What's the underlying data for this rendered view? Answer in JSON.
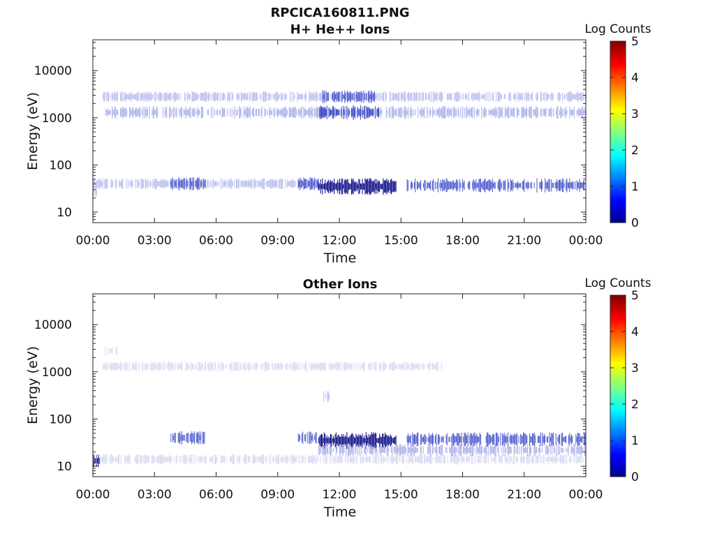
{
  "figure": {
    "title_line1": "RPCICA160811.PNG",
    "title_line2": "H+ He++ Ions"
  },
  "colorbar": {
    "title": "Log Counts",
    "ticks": [
      "0",
      "1",
      "2",
      "3",
      "4",
      "5"
    ],
    "range": [
      0,
      5
    ]
  },
  "colors": {
    "dark": "#000080",
    "mid": "#2030c0",
    "light": "#8890e0",
    "faint": "#b8bde8"
  },
  "chart_data": [
    {
      "type": "heatmap",
      "title": "",
      "xlabel": "Time",
      "ylabel": "Energy (eV)",
      "x_ticks": [
        "00:00",
        "03:00",
        "06:00",
        "09:00",
        "12:00",
        "15:00",
        "18:00",
        "21:00",
        "00:00"
      ],
      "x_range_hours": [
        0,
        24
      ],
      "y_ticks": [
        "10",
        "100",
        "1000",
        "10000"
      ],
      "y_range_eV": [
        6,
        45000
      ],
      "yscale": "log",
      "colorbar_label": "Log Counts",
      "colorbar_range": [
        0,
        5
      ],
      "bands": [
        {
          "t_start": 0.5,
          "t_end": 24.0,
          "energy_eV": 2800,
          "level": 0.3
        },
        {
          "t_start": 11.2,
          "t_end": 13.8,
          "energy_eV": 2800,
          "level": 0.6
        },
        {
          "t_start": 0.5,
          "t_end": 24.0,
          "energy_eV": 1300,
          "level": 0.5
        },
        {
          "t_start": 11.0,
          "t_end": 14.0,
          "energy_eV": 1300,
          "level": 0.8
        },
        {
          "t_start": 0.0,
          "t_end": 0.25,
          "energy_eV": 28,
          "level": 0.4
        },
        {
          "t_start": 0.0,
          "t_end": 11.0,
          "energy_eV": 40,
          "level": 0.3
        },
        {
          "t_start": 3.8,
          "t_end": 5.5,
          "energy_eV": 40,
          "level": 0.6
        },
        {
          "t_start": 10.0,
          "t_end": 11.0,
          "energy_eV": 40,
          "level": 0.6
        },
        {
          "t_start": 11.0,
          "t_end": 14.8,
          "energy_eV": 35,
          "level": 1.0
        },
        {
          "t_start": 15.3,
          "t_end": 24.0,
          "energy_eV": 37,
          "level": 0.7
        }
      ]
    },
    {
      "type": "heatmap",
      "title": "Other Ions",
      "xlabel": "Time",
      "ylabel": "Energy (eV)",
      "x_ticks": [
        "00:00",
        "03:00",
        "06:00",
        "09:00",
        "12:00",
        "15:00",
        "18:00",
        "21:00",
        "00:00"
      ],
      "x_range_hours": [
        0,
        24
      ],
      "y_ticks": [
        "10",
        "100",
        "1000",
        "10000"
      ],
      "y_range_eV": [
        6,
        45000
      ],
      "yscale": "log",
      "colorbar_label": "Log Counts",
      "colorbar_range": [
        0,
        5
      ],
      "bands": [
        {
          "t_start": 0.6,
          "t_end": 1.2,
          "energy_eV": 2800,
          "level": 0.2
        },
        {
          "t_start": 0.5,
          "t_end": 17.0,
          "energy_eV": 1300,
          "level": 0.2
        },
        {
          "t_start": 0.0,
          "t_end": 0.35,
          "energy_eV": 13,
          "level": 1.0
        },
        {
          "t_start": 0.0,
          "t_end": 24.0,
          "energy_eV": 14,
          "level": 0.25
        },
        {
          "t_start": 3.8,
          "t_end": 5.5,
          "energy_eV": 40,
          "level": 0.6
        },
        {
          "t_start": 10.0,
          "t_end": 11.0,
          "energy_eV": 40,
          "level": 0.6
        },
        {
          "t_start": 11.0,
          "t_end": 14.8,
          "energy_eV": 35,
          "level": 1.0
        },
        {
          "t_start": 11.0,
          "t_end": 24.0,
          "energy_eV": 22,
          "level": 0.5
        },
        {
          "t_start": 15.3,
          "t_end": 24.0,
          "energy_eV": 37,
          "level": 0.7
        },
        {
          "t_start": 11.2,
          "t_end": 11.6,
          "energy_eV": 300,
          "level": 0.3
        }
      ]
    }
  ]
}
